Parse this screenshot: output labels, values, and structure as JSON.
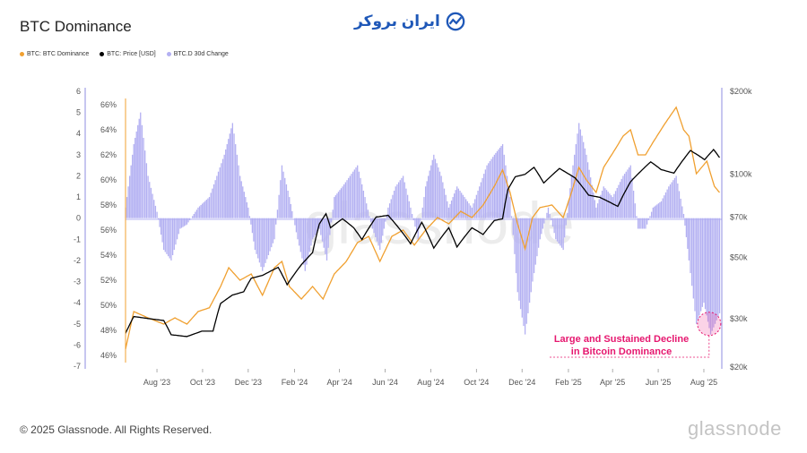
{
  "page": {
    "title": "BTC Dominance",
    "brand_text": "ایران بروکر",
    "footer": "© 2025 Glassnode. All Rights Reserved.",
    "watermark": "glassnode",
    "background_watermark": "glassnode"
  },
  "colors": {
    "dominance": "#f0a030",
    "price": "#000000",
    "change": "#b3b0f2",
    "annotation": "#e6176f",
    "axis_left": "#8f8ce0",
    "axis_dom": "#f0a030"
  },
  "chart_data": {
    "type": "line",
    "legend": [
      {
        "name": "BTC: BTC Dominance",
        "color": "#f0a030"
      },
      {
        "name": "BTC: Price [USD]",
        "color": "#000000"
      },
      {
        "name": "BTC.D 30d Change",
        "color": "#b3b0f2"
      }
    ],
    "x_range": [
      "2023-06-20",
      "2025-08-25"
    ],
    "x_ticks": [
      "Aug '23",
      "Oct '23",
      "Dec '23",
      "Feb '24",
      "Apr '24",
      "Jun '24",
      "Aug '24",
      "Oct '24",
      "Dec '24",
      "Feb '25",
      "Apr '25",
      "Jun '25",
      "Aug '25"
    ],
    "x_tick_dates": [
      "2023-08-01",
      "2023-10-01",
      "2023-12-01",
      "2024-02-01",
      "2024-04-01",
      "2024-06-01",
      "2024-08-01",
      "2024-10-01",
      "2024-12-01",
      "2025-02-01",
      "2025-04-01",
      "2025-06-01",
      "2025-08-01"
    ],
    "axis_change": {
      "min": -7,
      "max": 6,
      "ticks": [
        6,
        5,
        4,
        3,
        2,
        1,
        0,
        -1,
        -2,
        -3,
        -4,
        -5,
        -6,
        -7
      ]
    },
    "axis_dominance": {
      "min": 45.5,
      "max": 67,
      "ticks": [
        "66%",
        "64%",
        "62%",
        "60%",
        "58%",
        "56%",
        "54%",
        "52%",
        "50%",
        "48%",
        "46%"
      ],
      "tick_values": [
        66,
        64,
        62,
        60,
        58,
        56,
        54,
        52,
        50,
        48,
        46
      ]
    },
    "axis_price": {
      "scale": "log",
      "min": 20000,
      "max": 200000,
      "ticks": [
        "$200k",
        "$100k",
        "$70k",
        "$50k",
        "$30k",
        "$20k"
      ],
      "tick_values": [
        200000,
        100000,
        70000,
        50000,
        30000,
        20000
      ]
    },
    "series": [
      {
        "name": "BTC: BTC Dominance",
        "points": [
          [
            "2023-06-20",
            46.5
          ],
          [
            "2023-07-01",
            49.5
          ],
          [
            "2023-07-20",
            49.0
          ],
          [
            "2023-08-10",
            48.5
          ],
          [
            "2023-08-25",
            49.0
          ],
          [
            "2023-09-10",
            48.5
          ],
          [
            "2023-09-25",
            49.5
          ],
          [
            "2023-10-10",
            49.8
          ],
          [
            "2023-10-25",
            51.5
          ],
          [
            "2023-11-05",
            53.0
          ],
          [
            "2023-11-20",
            52.0
          ],
          [
            "2023-12-05",
            52.5
          ],
          [
            "2023-12-20",
            50.8
          ],
          [
            "2024-01-05",
            53.0
          ],
          [
            "2024-01-15",
            53.5
          ],
          [
            "2024-01-25",
            51.5
          ],
          [
            "2024-02-10",
            50.5
          ],
          [
            "2024-02-25",
            51.5
          ],
          [
            "2024-03-10",
            50.5
          ],
          [
            "2024-03-25",
            52.5
          ],
          [
            "2024-04-10",
            53.5
          ],
          [
            "2024-04-25",
            55.0
          ],
          [
            "2024-05-10",
            55.5
          ],
          [
            "2024-05-25",
            53.5
          ],
          [
            "2024-06-10",
            55.5
          ],
          [
            "2024-06-25",
            56.0
          ],
          [
            "2024-07-10",
            54.8
          ],
          [
            "2024-07-25",
            56.0
          ],
          [
            "2024-08-10",
            57.0
          ],
          [
            "2024-08-25",
            56.5
          ],
          [
            "2024-09-10",
            57.5
          ],
          [
            "2024-09-25",
            57.0
          ],
          [
            "2024-10-10",
            58.0
          ],
          [
            "2024-10-25",
            59.5
          ],
          [
            "2024-11-05",
            60.8
          ],
          [
            "2024-11-15",
            59.0
          ],
          [
            "2024-11-25",
            56.5
          ],
          [
            "2024-12-05",
            54.5
          ],
          [
            "2024-12-15",
            57.0
          ],
          [
            "2024-12-25",
            57.8
          ],
          [
            "2025-01-10",
            58.0
          ],
          [
            "2025-01-25",
            57.0
          ],
          [
            "2025-02-05",
            59.0
          ],
          [
            "2025-02-15",
            61.0
          ],
          [
            "2025-02-25",
            60.0
          ],
          [
            "2025-03-10",
            59.0
          ],
          [
            "2025-03-20",
            61.0
          ],
          [
            "2025-04-05",
            62.5
          ],
          [
            "2025-04-15",
            63.5
          ],
          [
            "2025-04-25",
            64.0
          ],
          [
            "2025-05-05",
            62.0
          ],
          [
            "2025-05-15",
            62.0
          ],
          [
            "2025-05-25",
            63.0
          ],
          [
            "2025-06-10",
            64.5
          ],
          [
            "2025-06-25",
            65.8
          ],
          [
            "2025-07-05",
            64.0
          ],
          [
            "2025-07-12",
            63.5
          ],
          [
            "2025-07-22",
            60.5
          ],
          [
            "2025-08-05",
            61.5
          ],
          [
            "2025-08-15",
            59.5
          ],
          [
            "2025-08-22",
            59.0
          ]
        ]
      },
      {
        "name": "BTC: Price [USD]",
        "points": [
          [
            "2023-06-20",
            26500
          ],
          [
            "2023-07-01",
            30500
          ],
          [
            "2023-07-20",
            30000
          ],
          [
            "2023-08-10",
            29500
          ],
          [
            "2023-08-20",
            26200
          ],
          [
            "2023-09-10",
            25800
          ],
          [
            "2023-09-30",
            27000
          ],
          [
            "2023-10-15",
            27000
          ],
          [
            "2023-10-25",
            34000
          ],
          [
            "2023-11-10",
            36500
          ],
          [
            "2023-11-25",
            37500
          ],
          [
            "2023-12-05",
            42000
          ],
          [
            "2023-12-20",
            43000
          ],
          [
            "2024-01-10",
            46000
          ],
          [
            "2024-01-22",
            39800
          ],
          [
            "2024-02-10",
            47000
          ],
          [
            "2024-02-25",
            52000
          ],
          [
            "2024-03-05",
            66000
          ],
          [
            "2024-03-14",
            72000
          ],
          [
            "2024-03-20",
            64000
          ],
          [
            "2024-04-05",
            69000
          ],
          [
            "2024-04-20",
            64000
          ],
          [
            "2024-05-01",
            58000
          ],
          [
            "2024-05-20",
            70000
          ],
          [
            "2024-06-05",
            71000
          ],
          [
            "2024-06-25",
            61000
          ],
          [
            "2024-07-05",
            56000
          ],
          [
            "2024-07-20",
            67000
          ],
          [
            "2024-08-05",
            54000
          ],
          [
            "2024-08-25",
            64000
          ],
          [
            "2024-09-05",
            54500
          ],
          [
            "2024-09-25",
            64000
          ],
          [
            "2024-10-10",
            60500
          ],
          [
            "2024-10-25",
            68000
          ],
          [
            "2024-11-05",
            69000
          ],
          [
            "2024-11-12",
            88000
          ],
          [
            "2024-11-22",
            98000
          ],
          [
            "2024-12-05",
            100000
          ],
          [
            "2024-12-17",
            106000
          ],
          [
            "2024-12-30",
            93000
          ],
          [
            "2025-01-20",
            105000
          ],
          [
            "2025-02-10",
            97000
          ],
          [
            "2025-02-28",
            84000
          ],
          [
            "2025-03-15",
            82500
          ],
          [
            "2025-04-08",
            76500
          ],
          [
            "2025-04-25",
            94000
          ],
          [
            "2025-05-22",
            111000
          ],
          [
            "2025-06-05",
            104000
          ],
          [
            "2025-06-22",
            101000
          ],
          [
            "2025-07-14",
            122000
          ],
          [
            "2025-07-25",
            117000
          ],
          [
            "2025-08-02",
            113000
          ],
          [
            "2025-08-14",
            123000
          ],
          [
            "2025-08-22",
            115000
          ]
        ]
      },
      {
        "name": "BTC.D 30d Change",
        "points": [
          [
            "2023-06-20",
            0.5
          ],
          [
            "2023-07-01",
            3.5
          ],
          [
            "2023-07-10",
            5.0
          ],
          [
            "2023-07-20",
            2.0
          ],
          [
            "2023-08-01",
            0.3
          ],
          [
            "2023-08-10",
            -1.5
          ],
          [
            "2023-08-20",
            -2.0
          ],
          [
            "2023-09-01",
            -0.5
          ],
          [
            "2023-09-10",
            -0.3
          ],
          [
            "2023-09-25",
            0.5
          ],
          [
            "2023-10-10",
            1.0
          ],
          [
            "2023-10-20",
            2.0
          ],
          [
            "2023-10-30",
            3.0
          ],
          [
            "2023-11-10",
            4.5
          ],
          [
            "2023-11-20",
            2.0
          ],
          [
            "2023-12-01",
            0.5
          ],
          [
            "2023-12-10",
            -1.5
          ],
          [
            "2023-12-20",
            -2.5
          ],
          [
            "2024-01-05",
            -1.0
          ],
          [
            "2024-01-15",
            2.5
          ],
          [
            "2024-01-25",
            1.0
          ],
          [
            "2024-02-05",
            -1.0
          ],
          [
            "2024-02-15",
            -2.5
          ],
          [
            "2024-02-25",
            -1.0
          ],
          [
            "2024-03-05",
            -0.5
          ],
          [
            "2024-03-15",
            -2.0
          ],
          [
            "2024-03-25",
            1.0
          ],
          [
            "2024-04-05",
            1.5
          ],
          [
            "2024-04-15",
            2.0
          ],
          [
            "2024-04-25",
            2.5
          ],
          [
            "2024-05-05",
            1.0
          ],
          [
            "2024-05-15",
            -0.5
          ],
          [
            "2024-05-25",
            -1.5
          ],
          [
            "2024-06-05",
            0.5
          ],
          [
            "2024-06-15",
            1.5
          ],
          [
            "2024-06-25",
            2.0
          ],
          [
            "2024-07-05",
            0.5
          ],
          [
            "2024-07-15",
            -1.0
          ],
          [
            "2024-07-25",
            1.5
          ],
          [
            "2024-08-05",
            3.0
          ],
          [
            "2024-08-15",
            2.0
          ],
          [
            "2024-08-25",
            0.5
          ],
          [
            "2024-09-05",
            1.5
          ],
          [
            "2024-09-15",
            1.0
          ],
          [
            "2024-09-25",
            0.5
          ],
          [
            "2024-10-05",
            1.5
          ],
          [
            "2024-10-15",
            2.5
          ],
          [
            "2024-10-25",
            3.0
          ],
          [
            "2024-11-05",
            3.5
          ],
          [
            "2024-11-15",
            1.0
          ],
          [
            "2024-11-25",
            -3.5
          ],
          [
            "2024-12-05",
            -5.5
          ],
          [
            "2024-12-15",
            -3.0
          ],
          [
            "2024-12-25",
            -1.0
          ],
          [
            "2025-01-05",
            0.5
          ],
          [
            "2025-01-15",
            -1.0
          ],
          [
            "2025-01-25",
            -1.5
          ],
          [
            "2025-02-05",
            2.0
          ],
          [
            "2025-02-15",
            4.5
          ],
          [
            "2025-02-25",
            3.0
          ],
          [
            "2025-03-10",
            0.5
          ],
          [
            "2025-03-20",
            1.5
          ],
          [
            "2025-04-01",
            1.0
          ],
          [
            "2025-04-15",
            2.0
          ],
          [
            "2025-04-25",
            2.5
          ],
          [
            "2025-05-05",
            -0.5
          ],
          [
            "2025-05-15",
            -0.5
          ],
          [
            "2025-05-25",
            0.5
          ],
          [
            "2025-06-05",
            0.8
          ],
          [
            "2025-06-15",
            1.5
          ],
          [
            "2025-06-25",
            2.0
          ],
          [
            "2025-07-05",
            0.2
          ],
          [
            "2025-07-12",
            -2.0
          ],
          [
            "2025-07-22",
            -5.0
          ],
          [
            "2025-08-01",
            -4.0
          ],
          [
            "2025-08-10",
            -5.5
          ],
          [
            "2025-08-22",
            -4.5
          ]
        ]
      }
    ],
    "annotations": [
      {
        "line1": "Large and Sustained Decline",
        "line2": "in Bitcoin Dominance",
        "date": "2025-08-08",
        "value_change": -5.0
      }
    ]
  }
}
